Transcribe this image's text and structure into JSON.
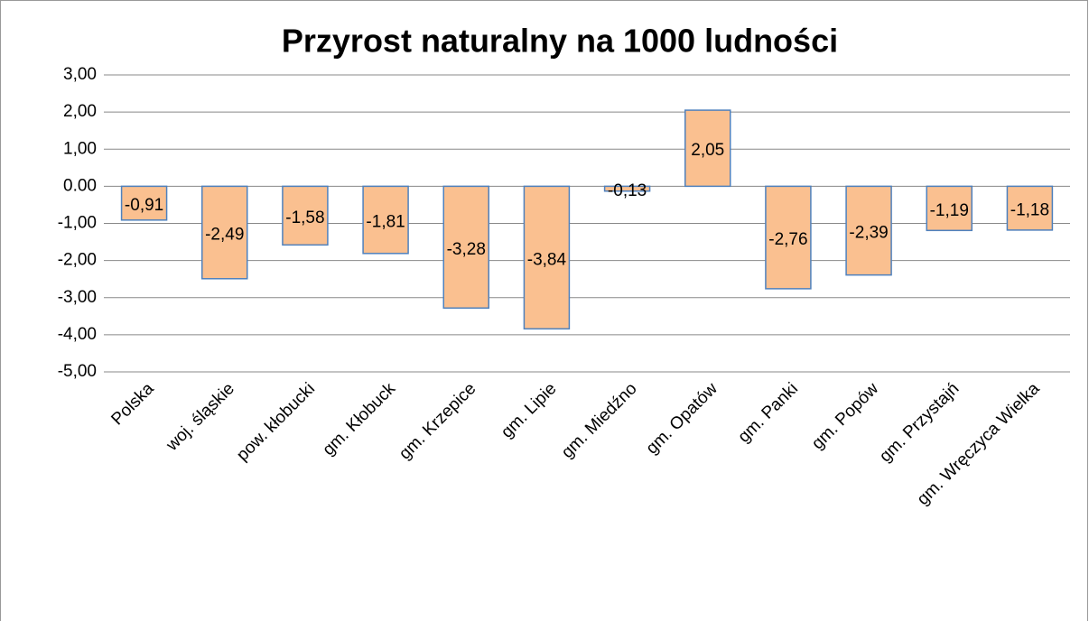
{
  "chart_data": {
    "type": "bar",
    "title": "Przyrost naturalny na 1000 ludności",
    "categories": [
      "Polska",
      "woj. śląskie",
      "pow. kłobucki",
      "gm. Kłobuck",
      "gm. Krzepice",
      "gm. Lipie",
      "gm. Miedźno",
      "gm. Opatów",
      "gm. Panki",
      "gm. Popów",
      "gm. Przystajń",
      "gm. Wręczyca Wielka"
    ],
    "values": [
      -0.91,
      -2.49,
      -1.58,
      -1.81,
      -3.28,
      -3.84,
      -0.13,
      2.05,
      -2.76,
      -2.39,
      -1.19,
      -1.18
    ],
    "value_labels": [
      "-0,91",
      "-2,49",
      "-1,58",
      "-1,81",
      "-3,28",
      "-3,84",
      "-0,13",
      "2,05",
      "-2,76",
      "-2,39",
      "-1,19",
      "-1,18"
    ],
    "color": "#fac090",
    "edge_color": "#4f81bd",
    "ylim": [
      -5,
      3
    ],
    "yticks": [
      {
        "value": 3,
        "label": "3,00"
      },
      {
        "value": 2,
        "label": "2,00"
      },
      {
        "value": 1,
        "label": "1,00"
      },
      {
        "value": 0,
        "label": "0.00"
      },
      {
        "value": -1,
        "label": "-1,00"
      },
      {
        "value": -2,
        "label": "-2,00"
      },
      {
        "value": -3,
        "label": "-3,00"
      },
      {
        "value": -4,
        "label": "-4,00"
      },
      {
        "value": -5,
        "label": "-5,00"
      }
    ],
    "grid": true
  }
}
